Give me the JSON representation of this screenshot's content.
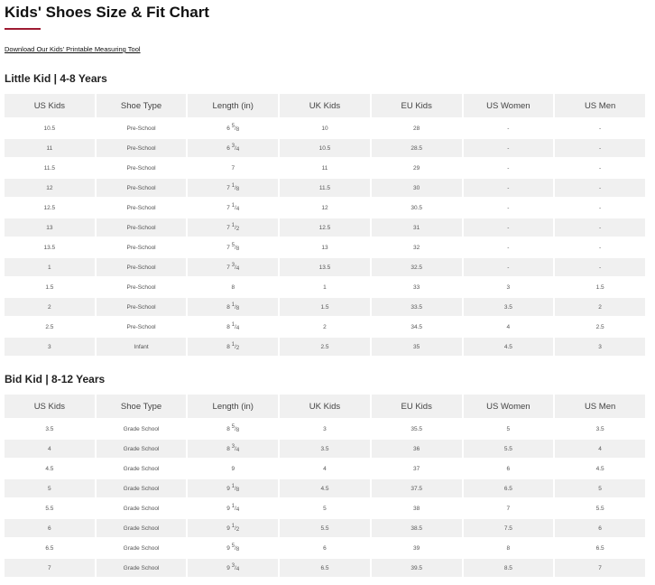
{
  "title": "Kids' Shoes Size & Fit Chart",
  "download_link": "Download Our Kids' Printable Measuring Tool",
  "accent_color": "#9e1b32",
  "columns": [
    "US Kids",
    "Shoe Type",
    "Length (in)",
    "UK Kids",
    "EU Kids",
    "US Women",
    "US Men"
  ],
  "sections": [
    {
      "title_a": "Little Kid",
      "title_b": "4-8 Years",
      "rows": [
        [
          "10.5",
          "Pre-School",
          [
            "6",
            "5",
            "8"
          ],
          "10",
          "28",
          "-",
          "-"
        ],
        [
          "11",
          "Pre-School",
          [
            "6",
            "3",
            "4"
          ],
          "10.5",
          "28.5",
          "-",
          "-"
        ],
        [
          "11.5",
          "Pre-School",
          [
            "7",
            "",
            ""
          ],
          "11",
          "29",
          "-",
          "-"
        ],
        [
          "12",
          "Pre-School",
          [
            "7",
            "1",
            "8"
          ],
          "11.5",
          "30",
          "-",
          "-"
        ],
        [
          "12.5",
          "Pre-School",
          [
            "7",
            "1",
            "4"
          ],
          "12",
          "30.5",
          "-",
          "-"
        ],
        [
          "13",
          "Pre-School",
          [
            "7",
            "1",
            "2"
          ],
          "12.5",
          "31",
          "-",
          "-"
        ],
        [
          "13.5",
          "Pre-School",
          [
            "7",
            "5",
            "8"
          ],
          "13",
          "32",
          "-",
          "-"
        ],
        [
          "1",
          "Pre-School",
          [
            "7",
            "3",
            "4"
          ],
          "13.5",
          "32.5",
          "-",
          "-"
        ],
        [
          "1.5",
          "Pre-School",
          [
            "8",
            "",
            ""
          ],
          "1",
          "33",
          "3",
          "1.5"
        ],
        [
          "2",
          "Pre-School",
          [
            "8",
            "1",
            "8"
          ],
          "1.5",
          "33.5",
          "3.5",
          "2"
        ],
        [
          "2.5",
          "Pre-School",
          [
            "8",
            "1",
            "4"
          ],
          "2",
          "34.5",
          "4",
          "2.5"
        ],
        [
          "3",
          "Infant",
          [
            "8",
            "1",
            "2"
          ],
          "2.5",
          "35",
          "4.5",
          "3"
        ]
      ]
    },
    {
      "title_a": "Bid Kid",
      "title_b": "8-12 Years",
      "rows": [
        [
          "3.5",
          "Grade School",
          [
            "8",
            "5",
            "8"
          ],
          "3",
          "35.5",
          "5",
          "3.5"
        ],
        [
          "4",
          "Grade School",
          [
            "8",
            "3",
            "4"
          ],
          "3.5",
          "36",
          "5.5",
          "4"
        ],
        [
          "4.5",
          "Grade School",
          [
            "9",
            "",
            ""
          ],
          "4",
          "37",
          "6",
          "4.5"
        ],
        [
          "5",
          "Grade School",
          [
            "9",
            "1",
            "8"
          ],
          "4.5",
          "37.5",
          "6.5",
          "5"
        ],
        [
          "5.5",
          "Grade School",
          [
            "9",
            "1",
            "4"
          ],
          "5",
          "38",
          "7",
          "5.5"
        ],
        [
          "6",
          "Grade School",
          [
            "9",
            "1",
            "2"
          ],
          "5.5",
          "38.5",
          "7.5",
          "6"
        ],
        [
          "6.5",
          "Grade School",
          [
            "9",
            "5",
            "8"
          ],
          "6",
          "39",
          "8",
          "6.5"
        ],
        [
          "7",
          "Grade School",
          [
            "9",
            "3",
            "4"
          ],
          "6.5",
          "39.5",
          "8.5",
          "7"
        ]
      ]
    }
  ]
}
